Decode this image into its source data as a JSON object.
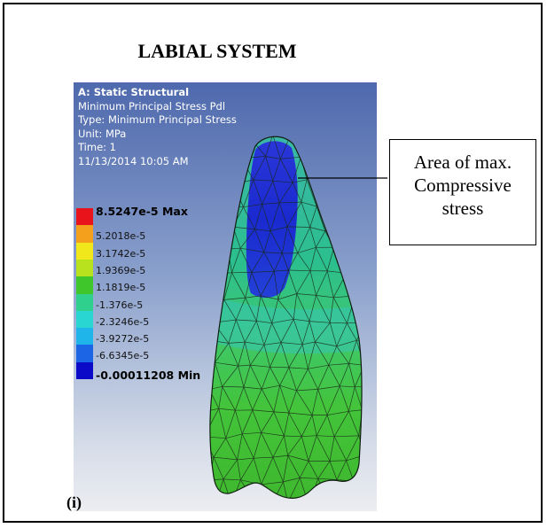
{
  "figure": {
    "title": "LABIAL SYSTEM",
    "panel_label": "(i)"
  },
  "result_info": {
    "analysis": "A: Static Structural",
    "result_name": "Minimum Principal Stress Pdl",
    "type": "Type: Minimum Principal Stress",
    "unit": "Unit: MPa",
    "time": "Time: 1",
    "timestamp": "11/13/2014 10:05 AM"
  },
  "legend": [
    {
      "label": "8.5247e-5 Max",
      "color": "#e8131b",
      "bold": true
    },
    {
      "label": "5.2018e-5",
      "color": "#f4a01c",
      "bold": false
    },
    {
      "label": "3.1742e-5",
      "color": "#f0e81a",
      "bold": false
    },
    {
      "label": "1.9369e-5",
      "color": "#b8e21e",
      "bold": false
    },
    {
      "label": "1.1819e-5",
      "color": "#3ec62a",
      "bold": false
    },
    {
      "label": "-1.376e-5",
      "color": "#2fd08e",
      "bold": false
    },
    {
      "label": "-2.3246e-5",
      "color": "#2ad6d2",
      "bold": false
    },
    {
      "label": "-3.9272e-5",
      "color": "#1fb4ea",
      "bold": false
    },
    {
      "label": "-6.6345e-5",
      "color": "#1c66e6",
      "bold": false
    },
    {
      "label": "-0.00011208 Min",
      "color": "#0a0ac8",
      "bold": true
    }
  ],
  "callout": {
    "line1": "Area of max.",
    "line2": "Compressive",
    "line3": "stress"
  },
  "colors": {
    "max_compression": "#1020c8",
    "model_green": "#4cc830",
    "model_cyan": "#38c6a4"
  }
}
